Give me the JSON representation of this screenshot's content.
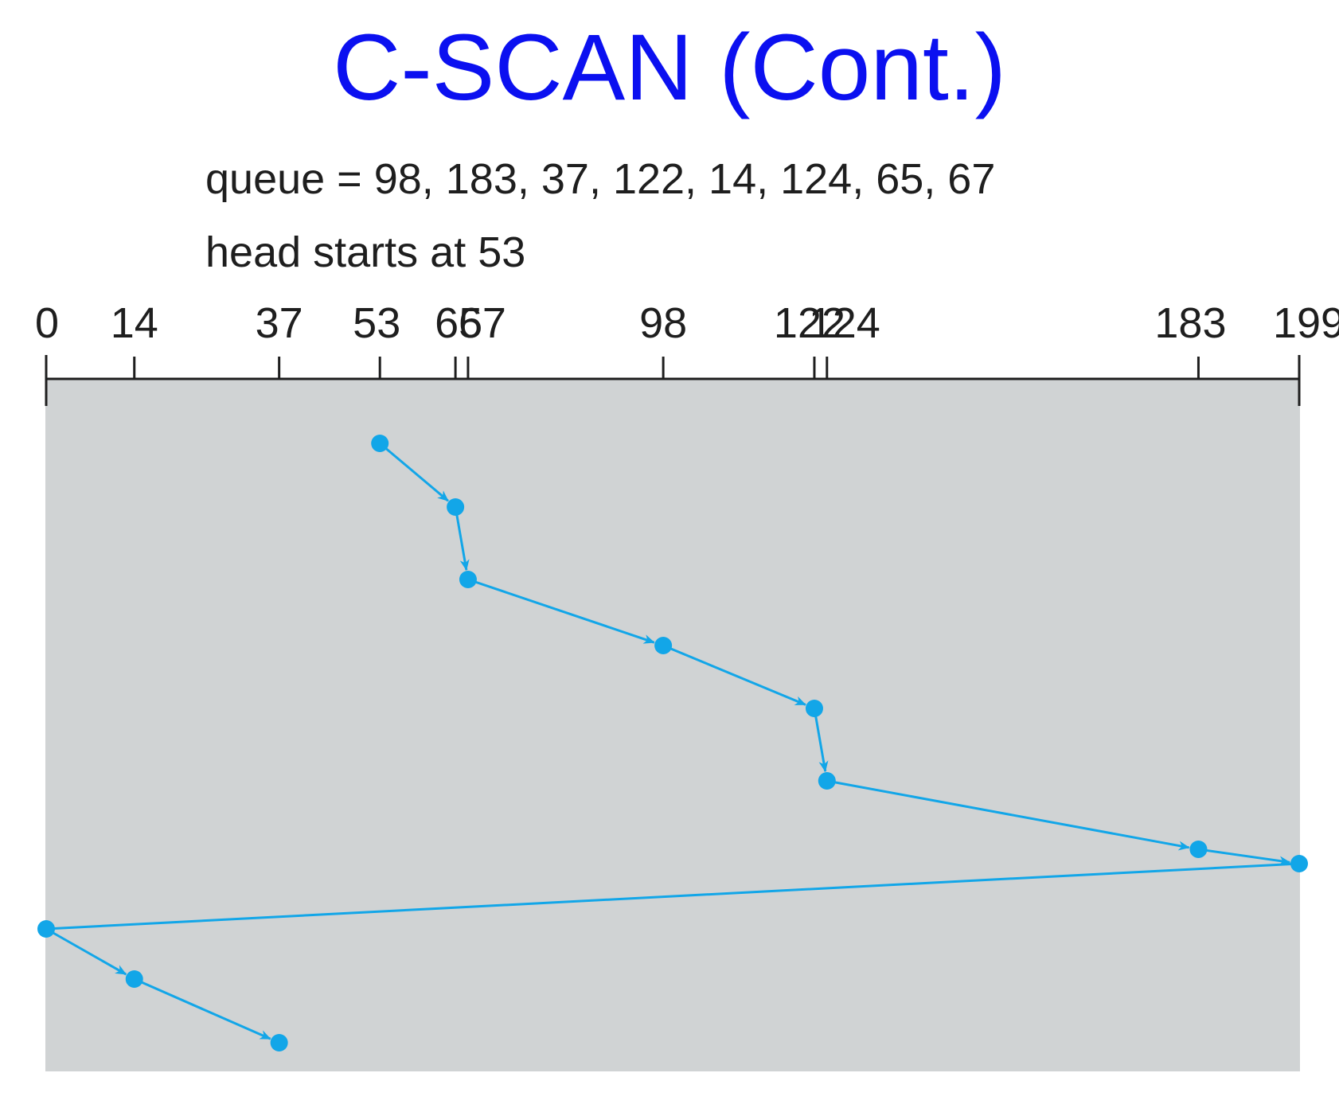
{
  "title": "C-SCAN (Cont.)",
  "queue_text": "queue = 98, 183, 37, 122, 14, 124, 65, 67",
  "head_text": "head starts at 53",
  "colors": {
    "title": "#0b10f0",
    "panel": "#d0d3d4",
    "path": "#12a6e8",
    "axis": "#1e1e1e"
  },
  "axis": {
    "min": 0,
    "max": 199,
    "ticks": [
      0,
      14,
      37,
      53,
      65,
      67,
      98,
      122,
      124,
      183,
      199
    ]
  },
  "head_path": [
    53,
    65,
    67,
    98,
    122,
    124,
    183,
    199,
    0,
    14,
    37
  ],
  "return_jump_step": 8
}
